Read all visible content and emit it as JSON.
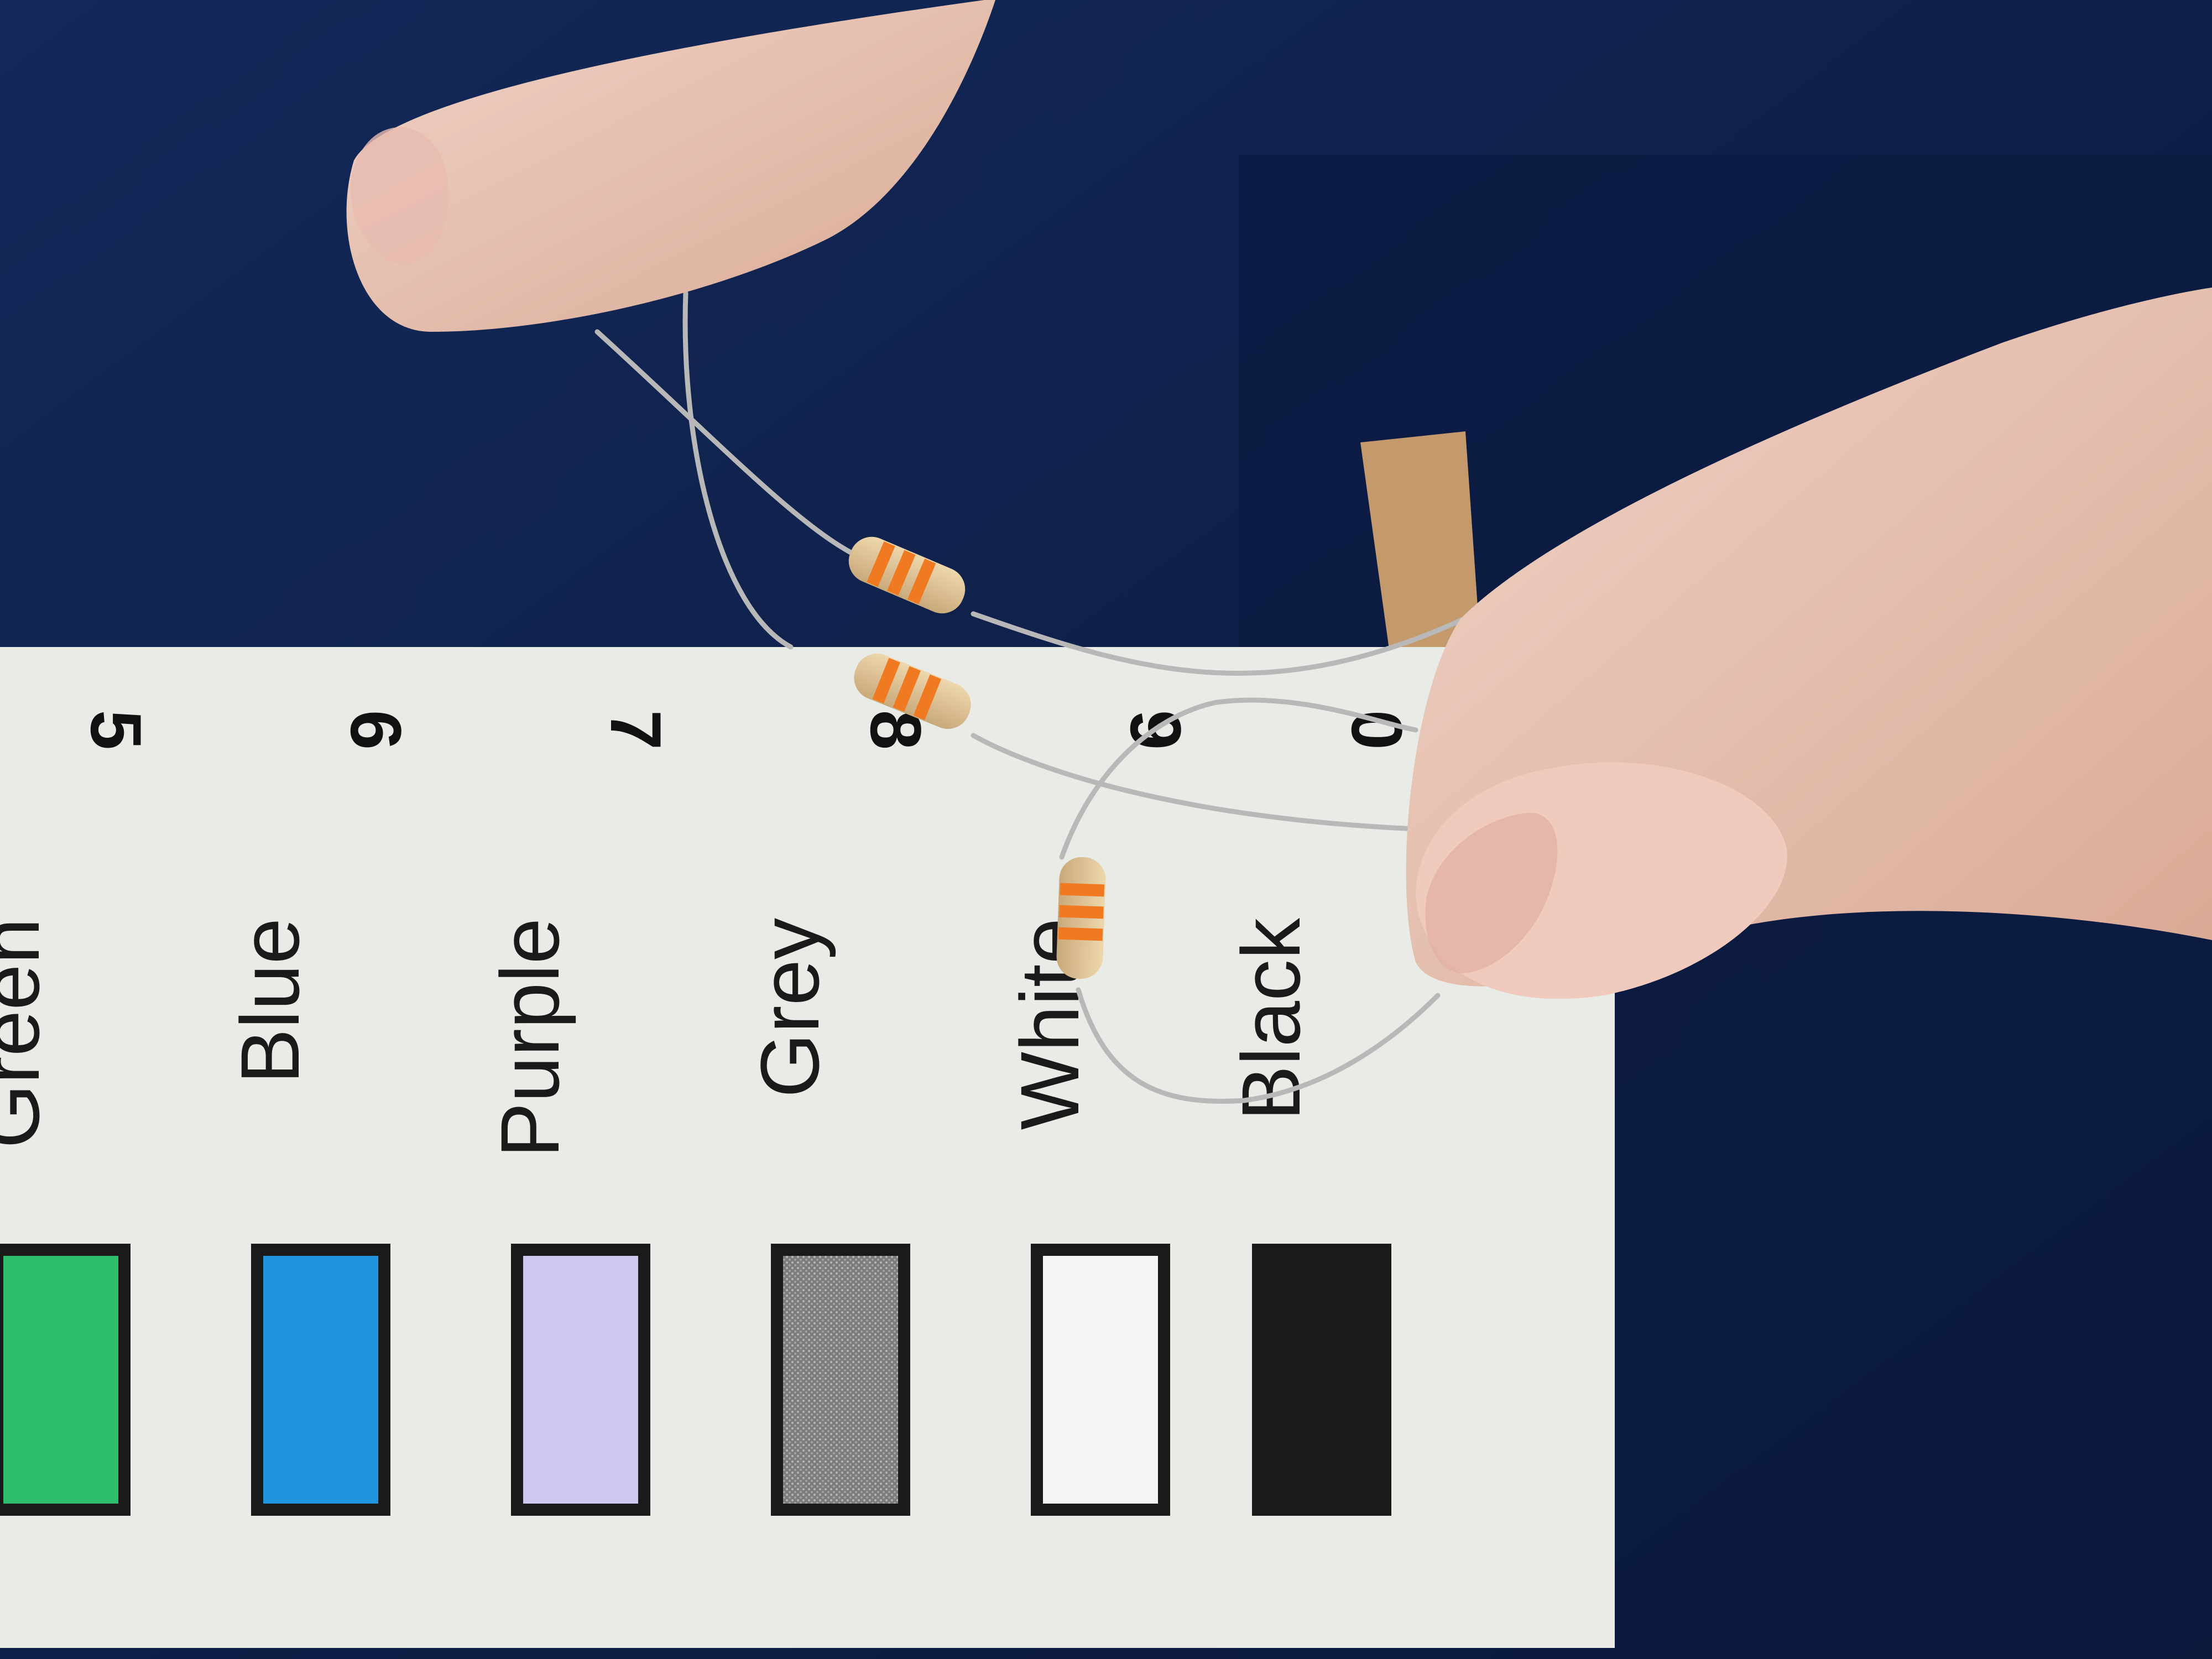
{
  "colors": {
    "background": "#0f1f47",
    "card": "#e9ebe6",
    "resistor_body": "#d9bf93",
    "band": "#f07a22",
    "lead": "#b8b8b8",
    "skin": "#e7c2b2"
  },
  "color_chart": {
    "rows": [
      {
        "digit": "5",
        "name": "Green",
        "swatch": "#2dbf6e"
      },
      {
        "digit": "6",
        "name": "Blue",
        "swatch": "#1e95dc"
      },
      {
        "digit": "7",
        "name": "Purple",
        "swatch": "#ccc8ef"
      },
      {
        "digit": "8",
        "name": "Grey",
        "swatch": "#8a8a8a"
      },
      {
        "digit": "9",
        "name": "White",
        "swatch": "#f4f4f2"
      },
      {
        "digit": "0",
        "name": "Black",
        "swatch": "#1c1c1c"
      }
    ]
  }
}
